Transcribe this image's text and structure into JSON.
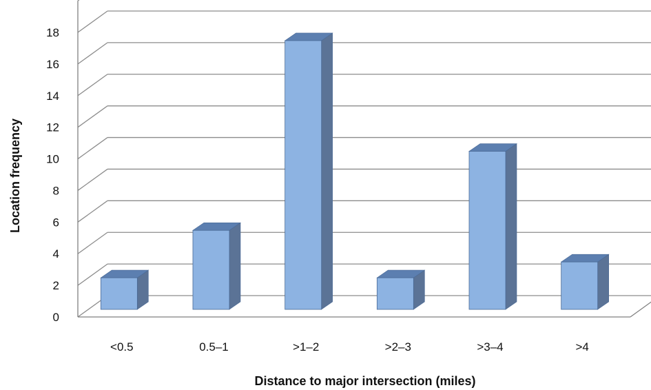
{
  "chart_data": {
    "type": "bar",
    "style": "3d-column",
    "title": "",
    "xlabel": "Distance to major intersection (miles)",
    "ylabel": "Location frequency",
    "categories": [
      "<0.5",
      "0.5–1",
      ">1–2",
      ">2–3",
      ">3–4",
      ">4"
    ],
    "series": [
      {
        "values": [
          2,
          5,
          17,
          2,
          10,
          3
        ]
      }
    ],
    "ylim": [
      0,
      18
    ],
    "yticks": [
      0,
      2,
      4,
      6,
      8,
      10,
      12,
      14,
      16,
      18
    ],
    "grid": true,
    "legend": "none",
    "colors": {
      "bar_front": "#8DB3E2",
      "bar_top": "#5C7FB0",
      "bar_side": "#5B7396",
      "bar_edge": "#4A6A96",
      "grid": "#8C8C8C",
      "axis": "#7F7F7F"
    }
  }
}
